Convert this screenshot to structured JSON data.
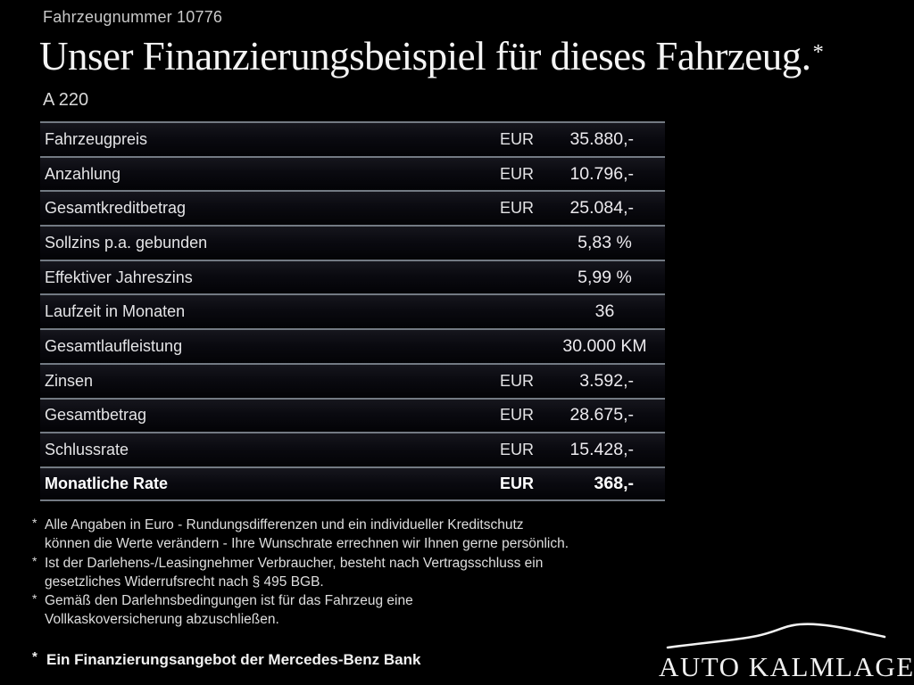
{
  "colors": {
    "background": "#000000",
    "row-top": "#16161d",
    "row-bottom": "#030306",
    "divider": "#737a83",
    "text": "#e8e8e8",
    "muted": "#c9c9c9",
    "bright": "#ffffff"
  },
  "header": {
    "vehicle_number": "Fahrzeugnummer 10776",
    "title": "Unser Finanzierungsbeispiel für dieses Fahrzeug.",
    "title_marker": "*",
    "model": "A 220"
  },
  "table": {
    "rows": [
      {
        "label": "Fahrzeugpreis",
        "currency": "EUR",
        "value": "35.880,-",
        "bold": false,
        "centered": false
      },
      {
        "label": "Anzahlung",
        "currency": "EUR",
        "value": "10.796,-",
        "bold": false,
        "centered": false
      },
      {
        "label": "Gesamtkreditbetrag",
        "currency": "EUR",
        "value": "25.084,-",
        "bold": false,
        "centered": false
      },
      {
        "label": "Sollzins p.a. gebunden",
        "currency": "",
        "value": "5,83 %",
        "bold": false,
        "centered": true
      },
      {
        "label": "Effektiver Jahreszins",
        "currency": "",
        "value": "5,99 %",
        "bold": false,
        "centered": true
      },
      {
        "label": "Laufzeit in Monaten",
        "currency": "",
        "value": "36",
        "bold": false,
        "centered": true
      },
      {
        "label": "Gesamtlaufleistung",
        "currency": "",
        "value": "30.000 KM",
        "bold": false,
        "centered": true
      },
      {
        "label": "Zinsen",
        "currency": "EUR",
        "value": "3.592,-",
        "bold": false,
        "centered": false
      },
      {
        "label": "Gesamtbetrag",
        "currency": "EUR",
        "value": "28.675,-",
        "bold": false,
        "centered": false
      },
      {
        "label": "Schlussrate",
        "currency": "EUR",
        "value": "15.428,-",
        "bold": false,
        "centered": false
      },
      {
        "label": "Monatliche Rate",
        "currency": "EUR",
        "value": "368,-",
        "bold": true,
        "centered": false
      }
    ]
  },
  "footnotes": {
    "marker": "*",
    "items": [
      {
        "lines": [
          "Alle Angaben in Euro - Rundungsdifferenzen und ein individueller Kreditschutz",
          "können die Werte verändern - Ihre Wunschrate errechnen wir Ihnen gerne persönlich."
        ]
      },
      {
        "lines": [
          "Ist der Darlehens-/Leasingnehmer Verbraucher, besteht nach Vertragsschluss ein",
          "gesetzliches Widerrufsrecht nach § 495 BGB."
        ]
      },
      {
        "lines": [
          "Gemäß den Darlehnsbedingungen ist für das Fahrzeug eine",
          "Vollkaskoversicherung abzuschließen."
        ]
      }
    ]
  },
  "bank_note": {
    "marker": "*",
    "text": "Ein Finanzierungsangebot der Mercedes-Benz Bank"
  },
  "dealer": {
    "name": "AUTO KALMLAGE"
  }
}
